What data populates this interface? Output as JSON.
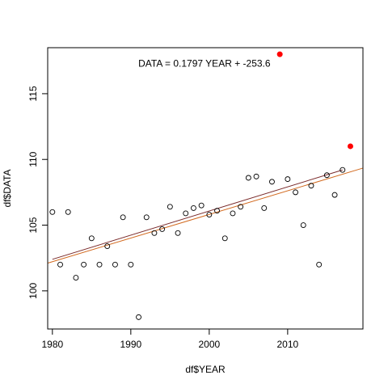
{
  "chart_data": {
    "type": "scatter",
    "xlabel": "df$YEAR",
    "ylabel": "df$DATA",
    "xlim": [
      1979.4,
      2019.6
    ],
    "ylim": [
      97.1,
      118.5
    ],
    "x_ticks": [
      1980,
      1990,
      2000,
      2010
    ],
    "y_ticks": [
      100,
      105,
      110,
      115
    ],
    "annotation": {
      "text": "DATA = 0.1797 YEAR + -253.6",
      "x": 2000,
      "y": 117.3
    },
    "points": [
      {
        "x": 1980,
        "y": 106.0
      },
      {
        "x": 1981,
        "y": 102.0
      },
      {
        "x": 1982,
        "y": 106.0
      },
      {
        "x": 1983,
        "y": 101.0
      },
      {
        "x": 1984,
        "y": 102.0
      },
      {
        "x": 1985,
        "y": 104.0
      },
      {
        "x": 1986,
        "y": 102.0
      },
      {
        "x": 1987,
        "y": 103.4
      },
      {
        "x": 1988,
        "y": 102.0
      },
      {
        "x": 1989,
        "y": 105.6
      },
      {
        "x": 1990,
        "y": 102.0
      },
      {
        "x": 1991,
        "y": 98.0
      },
      {
        "x": 1992,
        "y": 105.6
      },
      {
        "x": 1993,
        "y": 104.4
      },
      {
        "x": 1994,
        "y": 104.7
      },
      {
        "x": 1995,
        "y": 106.4
      },
      {
        "x": 1996,
        "y": 104.4
      },
      {
        "x": 1997,
        "y": 105.9
      },
      {
        "x": 1998,
        "y": 106.3
      },
      {
        "x": 1999,
        "y": 106.5
      },
      {
        "x": 2000,
        "y": 105.8
      },
      {
        "x": 2001,
        "y": 106.1
      },
      {
        "x": 2002,
        "y": 104.0
      },
      {
        "x": 2003,
        "y": 105.9
      },
      {
        "x": 2004,
        "y": 106.4
      },
      {
        "x": 2005,
        "y": 108.6
      },
      {
        "x": 2006,
        "y": 108.7
      },
      {
        "x": 2007,
        "y": 106.3
      },
      {
        "x": 2008,
        "y": 108.3
      },
      {
        "x": 2010,
        "y": 108.5
      },
      {
        "x": 2011,
        "y": 107.5
      },
      {
        "x": 2012,
        "y": 105.0
      },
      {
        "x": 2013,
        "y": 108.0
      },
      {
        "x": 2014,
        "y": 102.0
      },
      {
        "x": 2015,
        "y": 108.8
      },
      {
        "x": 2016,
        "y": 107.3
      },
      {
        "x": 2017,
        "y": 109.2
      }
    ],
    "highlight_points": [
      {
        "x": 2009,
        "y": 118.0
      },
      {
        "x": 2018,
        "y": 111.0
      }
    ],
    "fit_lines": [
      {
        "color": "#d2691e",
        "from": {
          "x": 1979.4,
          "y": 102.11
        },
        "to": {
          "x": 2019.6,
          "y": 109.34
        }
      },
      {
        "color": "#7a2a2a",
        "from": {
          "x": 1980,
          "y": 102.4
        },
        "to": {
          "x": 2017,
          "y": 109.2
        }
      }
    ],
    "colors": {
      "points": "#000000",
      "highlight": "#ff0000"
    },
    "grid": false,
    "legend": "none"
  }
}
